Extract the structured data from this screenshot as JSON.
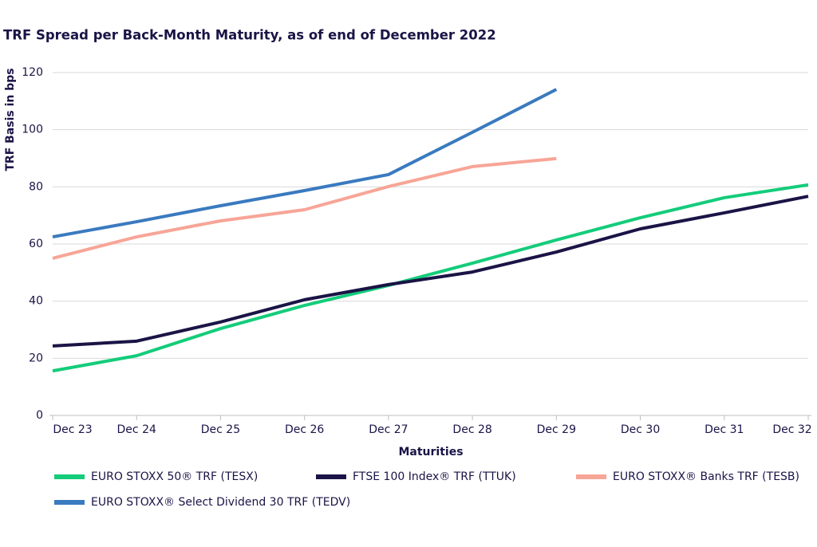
{
  "chart_data": {
    "type": "line",
    "title": "TRF Spread per Back-Month Maturity, as of end of December 2022",
    "x_label": "Maturities",
    "y_label": "TRF Basis in bps",
    "categories": [
      "Dec 23",
      "Dec 24",
      "Dec 25",
      "Dec 26",
      "Dec 27",
      "Dec 28",
      "Dec 29",
      "Dec 30",
      "Dec 31",
      "Dec 32"
    ],
    "series": [
      {
        "name": "EURO STOXX 50® TRF (TESX)",
        "color": "#14cc7a",
        "values": [
          15.6,
          20.9,
          30.4,
          38.5,
          45.5,
          53.3,
          61.4,
          69.2,
          76.2,
          80.7
        ]
      },
      {
        "name": "FTSE 100 Index® TRF (TTUK)",
        "color": "#1a1446",
        "values": [
          24.3,
          26,
          32.7,
          40.5,
          45.8,
          50.2,
          57.2,
          65.3,
          70.9,
          76.7
        ]
      },
      {
        "name": "EURO STOXX® Banks TRF (TESB)",
        "color": "#f7a597",
        "values": [
          55,
          62.5,
          68.1,
          72,
          80.1,
          87.1,
          89.9,
          null,
          null,
          null
        ]
      },
      {
        "name": "EURO STOXX® Select Dividend 30 TRF (TEDV)",
        "color": "#3a7abf",
        "values": [
          62.5,
          67.8,
          73.4,
          78.7,
          84.3,
          99.1,
          114.1,
          null,
          null,
          null
        ]
      }
    ],
    "ylim": [
      0,
      120
    ],
    "yticks": [
      0,
      20,
      40,
      60,
      80,
      100,
      120
    ],
    "grid": true
  }
}
